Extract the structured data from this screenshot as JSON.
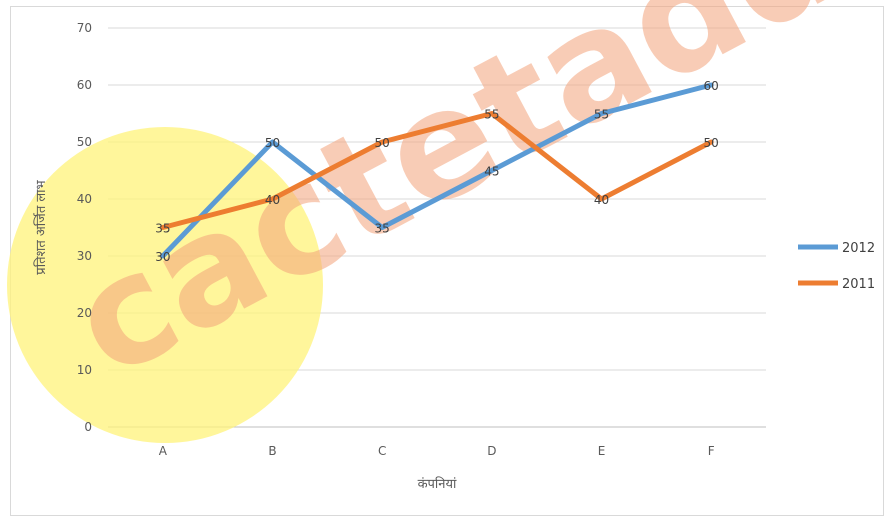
{
  "chart_data": {
    "type": "line",
    "title": "",
    "xlabel": "कंपनियां",
    "ylabel": "प्रतिशत अर्जित लाभ",
    "categories": [
      "A",
      "B",
      "C",
      "D",
      "E",
      "F"
    ],
    "ylim": [
      0,
      70
    ],
    "yticks": [
      0,
      10,
      20,
      30,
      40,
      50,
      60,
      70
    ],
    "grid": true,
    "legend": "right",
    "series": [
      {
        "name": "2012",
        "color": "#5b9bd5",
        "values": [
          30,
          50,
          35,
          45,
          55,
          60
        ]
      },
      {
        "name": "2011",
        "color": "#ed7d31",
        "values": [
          35,
          40,
          50,
          55,
          40,
          50
        ]
      }
    ]
  },
  "watermark": {
    "text": "cactetadd",
    "circle_color": "#fff37a"
  }
}
